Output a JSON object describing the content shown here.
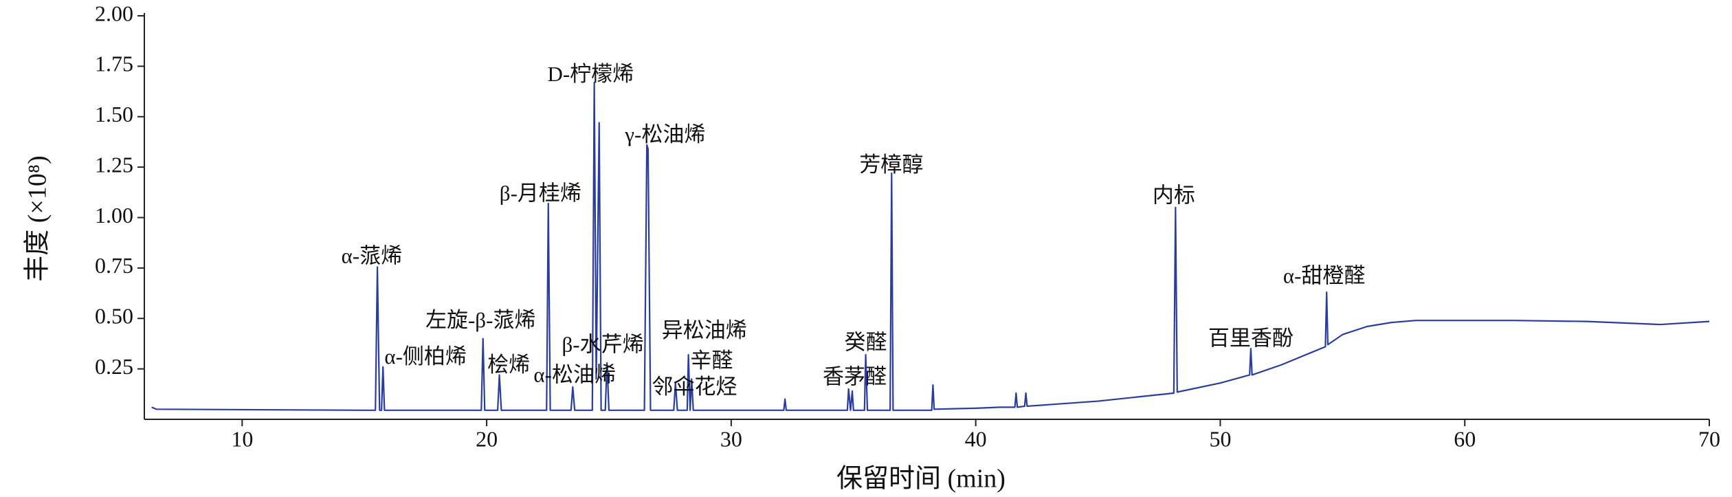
{
  "chart_data": {
    "type": "line",
    "xlabel": "保留时间 (min)",
    "ylabel": "丰度 (×10⁸)",
    "xlim": [
      6,
      70
    ],
    "ylim": [
      0,
      2
    ],
    "xticks": [
      10,
      20,
      30,
      40,
      50,
      60,
      70
    ],
    "yticks": [
      0.25,
      {
        "value": 0.5,
        "label": "0.50"
      },
      0.75,
      {
        "value": 1,
        "label": "1.00"
      },
      1.25,
      {
        "value": 1.5,
        "label": "1.50"
      },
      1.75,
      {
        "value": 2,
        "label": "2.00"
      }
    ],
    "series": [
      {
        "color": "#2a3d9c",
        "x": [
          6.3,
          6.5,
          15.0,
          15.45,
          15.53,
          15.62,
          15.7,
          15.76,
          15.82,
          19.78,
          19.85,
          19.92,
          20.45,
          20.52,
          20.6,
          22.45,
          22.52,
          22.6,
          23.45,
          23.52,
          23.6,
          24.32,
          24.4,
          24.48,
          24.6,
          24.68,
          24.85,
          24.92,
          25.0,
          26.45,
          26.55,
          26.6,
          26.7,
          27.65,
          27.72,
          27.8,
          28.2,
          28.25,
          28.32,
          28.38,
          28.45,
          32.15,
          32.2,
          32.25,
          34.75,
          34.8,
          34.88,
          34.95,
          35.0,
          35.45,
          35.5,
          35.57,
          36.5,
          36.56,
          36.62,
          38.2,
          38.25,
          38.3,
          40,
          41,
          41.6,
          41.65,
          41.7,
          42,
          42.05,
          42.1,
          45,
          48.1,
          48.17,
          48.24,
          50,
          51.2,
          51.25,
          51.3,
          52.5,
          54.3,
          54.35,
          54.4,
          55,
          56,
          57,
          58,
          62,
          65,
          68,
          70
        ],
        "values": [
          0.06,
          0.05,
          0.045,
          0.045,
          0.755,
          0.045,
          0.045,
          0.26,
          0.045,
          0.045,
          0.4,
          0.045,
          0.045,
          0.22,
          0.045,
          0.045,
          1.07,
          0.045,
          0.045,
          0.16,
          0.045,
          0.045,
          1.67,
          0.2,
          1.47,
          0.045,
          0.045,
          0.28,
          0.045,
          0.045,
          1.36,
          1.34,
          0.045,
          0.045,
          0.18,
          0.045,
          0.045,
          0.32,
          0.045,
          0.2,
          0.045,
          0.045,
          0.1,
          0.045,
          0.045,
          0.15,
          0.045,
          0.14,
          0.045,
          0.045,
          0.32,
          0.045,
          0.045,
          1.22,
          0.045,
          0.045,
          0.17,
          0.05,
          0.055,
          0.06,
          0.06,
          0.13,
          0.06,
          0.065,
          0.13,
          0.065,
          0.09,
          0.13,
          1.05,
          0.135,
          0.18,
          0.22,
          0.35,
          0.22,
          0.27,
          0.36,
          0.63,
          0.37,
          0.42,
          0.46,
          0.48,
          0.49,
          0.49,
          0.485,
          0.47,
          0.485
        ]
      }
    ],
    "annotations": [
      {
        "text": "α-蒎烯",
        "x": 15.3,
        "y": 0.8
      },
      {
        "text": "α-侧柏烯",
        "x": 17.5,
        "y": 0.3
      },
      {
        "text": "左旋-β-蒎烯",
        "x": 19.75,
        "y": 0.48
      },
      {
        "text": "桧烯",
        "x": 20.9,
        "y": 0.26
      },
      {
        "text": "β-月桂烯",
        "x": 22.2,
        "y": 1.11
      },
      {
        "text": "α-松油烯",
        "x": 23.6,
        "y": 0.21
      },
      {
        "text": "D-柠檬烯",
        "x": 24.25,
        "y": 1.7
      },
      {
        "text": "γ-松油烯",
        "x": 27.3,
        "y": 1.4
      },
      {
        "text": "β-水芹烯",
        "x": 24.75,
        "y": 0.36
      },
      {
        "text": "异松油烯",
        "x": 28.9,
        "y": 0.43
      },
      {
        "text": "辛醛",
        "x": 29.2,
        "y": 0.28
      },
      {
        "text": "邻伞花烃",
        "x": 28.5,
        "y": 0.15
      },
      {
        "text": "癸醛",
        "x": 35.5,
        "y": 0.37
      },
      {
        "text": "香茅醛",
        "x": 35.05,
        "y": 0.2
      },
      {
        "text": "芳樟醇",
        "x": 36.55,
        "y": 1.25
      },
      {
        "text": "内标",
        "x": 48.1,
        "y": 1.1
      },
      {
        "text": "百里香酚",
        "x": 51.25,
        "y": 0.39
      },
      {
        "text": "α-甜橙醛",
        "x": 54.25,
        "y": 0.7
      }
    ]
  }
}
